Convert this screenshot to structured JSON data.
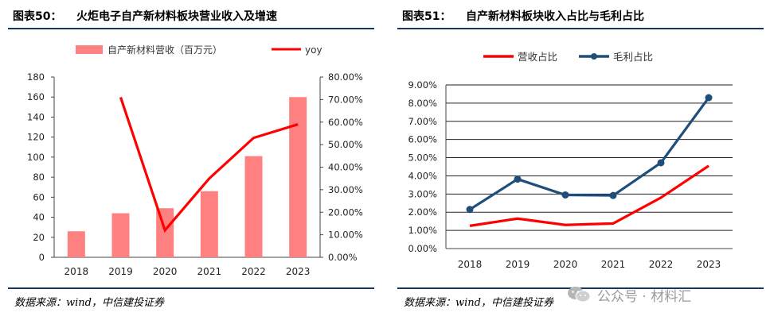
{
  "left_figure": {
    "label": "图表50：",
    "title": "火炬电子自产新材料板块营业收入及增速",
    "source": "数据来源：wind，中信建投证券"
  },
  "right_figure": {
    "label": "图表51：",
    "title": "自产新材料板块收入占比与毛利占比",
    "source": "数据来源：wind，中信建投证券"
  },
  "watermark": {
    "text": "公众号 · 材料汇"
  },
  "colors": {
    "bar": "#ff8080",
    "red_line": "#ff0000",
    "navy_line": "#1f4e79",
    "rule": "#17375e"
  },
  "chart_data": [
    {
      "type": "bar+line",
      "title": "火炬电子自产新材料板块营业收入及增速",
      "categories": [
        "2018",
        "2019",
        "2020",
        "2021",
        "2022",
        "2023"
      ],
      "series": [
        {
          "name": "自产新材料营收（百万元）",
          "type": "bar",
          "axis": "left",
          "values": [
            26,
            44,
            49,
            66,
            101,
            160
          ]
        },
        {
          "name": "yoy",
          "type": "line",
          "axis": "right",
          "values": [
            null,
            71.0,
            12.0,
            35.0,
            53.0,
            59.0
          ]
        }
      ],
      "y_left": {
        "min": 0,
        "max": 180,
        "step": 20,
        "ticks": [
          "0",
          "20",
          "40",
          "60",
          "80",
          "100",
          "120",
          "140",
          "160",
          "180"
        ]
      },
      "y_right": {
        "min": 0,
        "max": 80,
        "step": 10,
        "ticks": [
          "0.00%",
          "10.00%",
          "20.00%",
          "30.00%",
          "40.00%",
          "50.00%",
          "60.00%",
          "70.00%",
          "80.00%"
        ]
      },
      "legend": "top",
      "grid": false
    },
    {
      "type": "line",
      "title": "自产新材料板块收入占比与毛利占比",
      "categories": [
        "2018",
        "2019",
        "2020",
        "2021",
        "2022",
        "2023"
      ],
      "series": [
        {
          "name": "营收占比",
          "values": [
            1.25,
            1.65,
            1.3,
            1.38,
            2.8,
            4.55
          ]
        },
        {
          "name": "毛利占比",
          "values": [
            2.15,
            3.82,
            2.95,
            2.92,
            4.72,
            8.3
          ],
          "markers": true
        }
      ],
      "y": {
        "min": 0,
        "max": 9,
        "step": 1,
        "ticks": [
          "0.00%",
          "1.00%",
          "2.00%",
          "3.00%",
          "4.00%",
          "5.00%",
          "6.00%",
          "7.00%",
          "8.00%",
          "9.00%"
        ]
      },
      "legend": "top",
      "grid": true
    }
  ]
}
